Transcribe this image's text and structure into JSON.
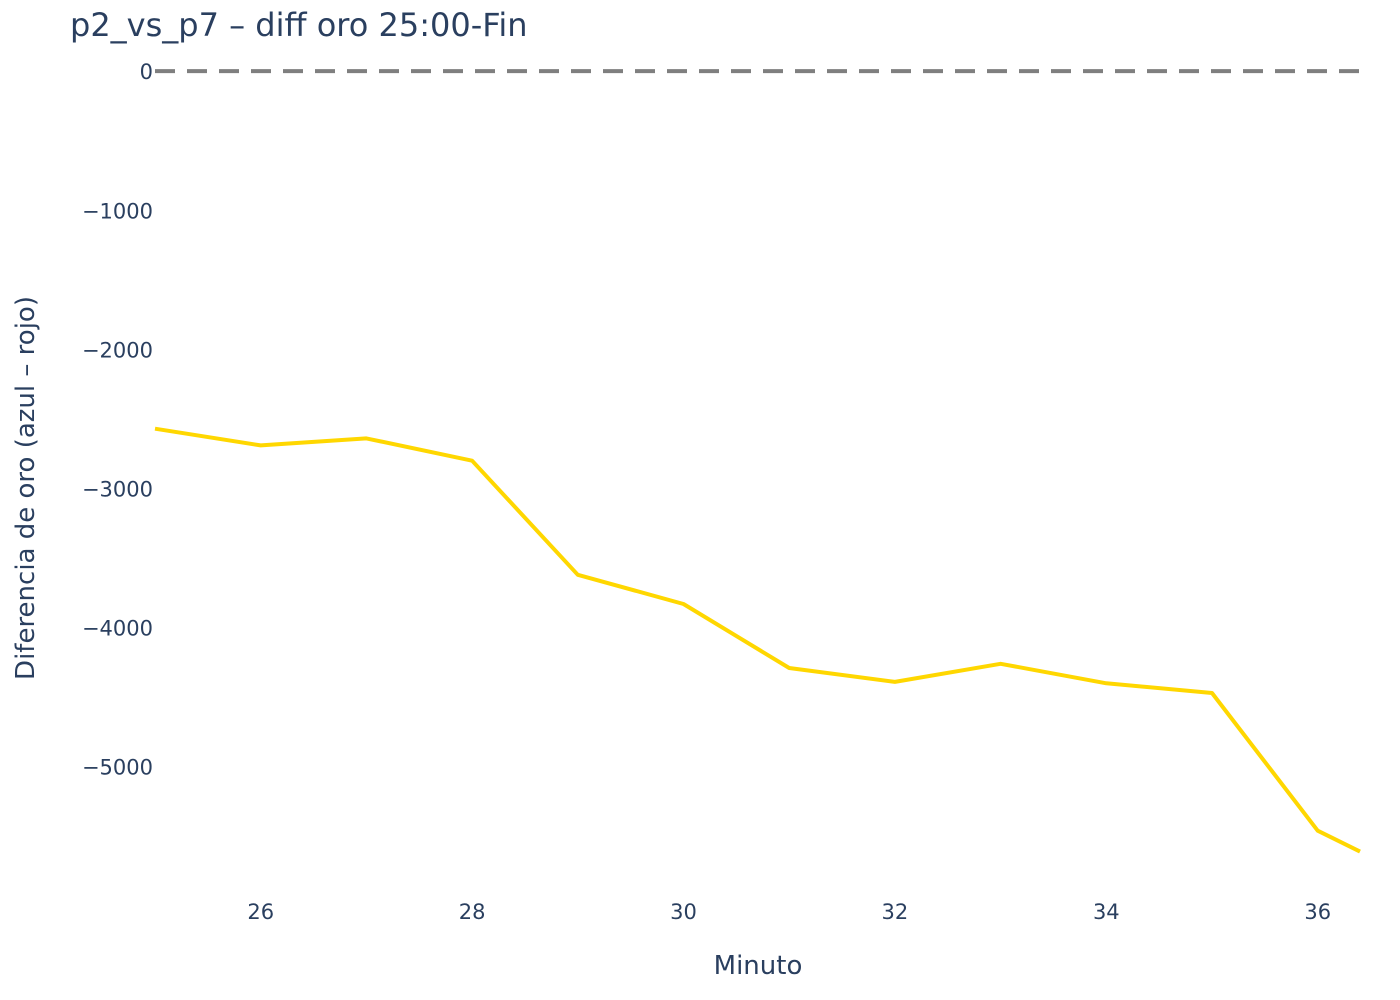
{
  "chart_data": {
    "type": "line",
    "title": "p2_vs_p7 – diff oro 25:00-Fin",
    "xlabel": "Minuto",
    "ylabel": "Diferencia de oro (azul – rojo)",
    "x": [
      25,
      26,
      27,
      28,
      29,
      30,
      31,
      32,
      33,
      34,
      35,
      36,
      36.4
    ],
    "series": [
      {
        "values": [
          -2570,
          -2690,
          -2640,
          -2800,
          -3620,
          -3830,
          -4290,
          -4390,
          -4260,
          -4400,
          -4470,
          -5460,
          -5610
        ]
      }
    ],
    "xlim": [
      25,
      36.4
    ],
    "ylim": [
      -5850,
      80
    ],
    "xticks": [
      26,
      28,
      30,
      32,
      34,
      36
    ],
    "xtick_labels": [
      "26",
      "28",
      "30",
      "32",
      "34",
      "36"
    ],
    "yticks": [
      0,
      -1000,
      -2000,
      -3000,
      -4000,
      -5000
    ],
    "ytick_labels": [
      "0",
      "−1000",
      "−2000",
      "−3000",
      "−4000",
      "−5000"
    ],
    "reference_line": {
      "y": 0,
      "style": "dashed",
      "color": "#7f7f7f"
    },
    "line_color": "#FFD700",
    "grid": false,
    "legend": "none"
  }
}
